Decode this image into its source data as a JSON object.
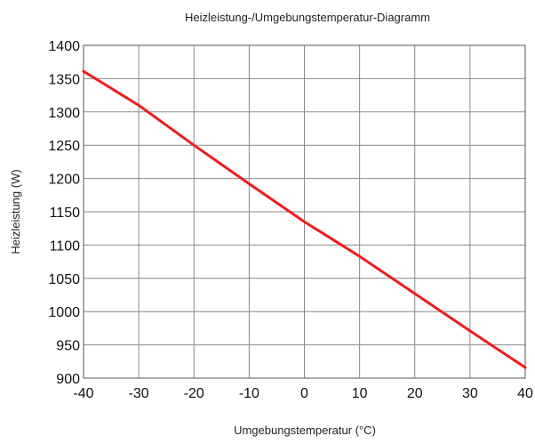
{
  "chart_data": {
    "type": "line",
    "title": "Heizleistung-/Umgebungstemperatur-Diagramm",
    "xlabel": "Umgebungstemperatur (°C)",
    "ylabel": "Heizleistung (W)",
    "xlim": [
      -40,
      40
    ],
    "ylim": [
      900,
      1400
    ],
    "xticks": [
      -40,
      -30,
      -20,
      -10,
      0,
      10,
      20,
      30,
      40
    ],
    "yticks": [
      900,
      950,
      1000,
      1050,
      1100,
      1150,
      1200,
      1250,
      1300,
      1350,
      1400
    ],
    "grid": true,
    "colors": {
      "series": "#ee1c1c",
      "grid": "#8a8a8a"
    },
    "series": [
      {
        "x": [
          -40,
          -30,
          -20,
          -10,
          0,
          10,
          20,
          30,
          40
        ],
        "values": [
          1361,
          1310,
          1250,
          1192,
          1135,
          1083,
          1027,
          971,
          916
        ]
      }
    ]
  }
}
